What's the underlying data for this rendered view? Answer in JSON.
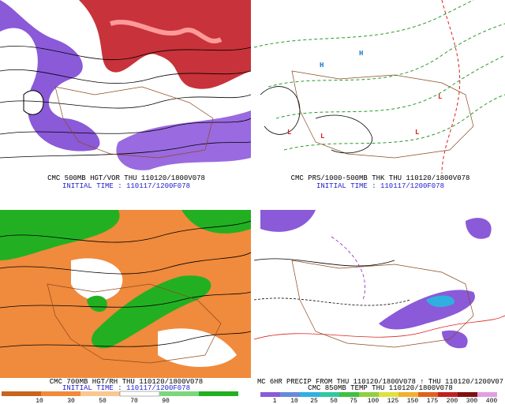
{
  "panels": [
    {
      "lines": [
        "CMC 500MB HGT/VOR THU 110120/1800V078",
        "INITIAL TIME : 110117/1200F078"
      ]
    },
    {
      "lines": [
        "CMC PRS/1000-500MB THK THU 110120/1800V078",
        "INITIAL TIME : 110117/1200F078"
      ]
    },
    {
      "lines": [
        "CMC 700MB HGT/RH THU 110120/1800V078",
        "INITIAL TIME : 110117/1200F078"
      ],
      "colorbar_labels": [
        "10",
        "30",
        "50",
        "70",
        "90"
      ]
    },
    {
      "lines": [
        "MC 6HR PRECIP FROM THU 110120/1800V078 ↑ THU 110120/1200V07",
        "CMC 850MB TEMP THU 110120/1800V078"
      ],
      "colorbar_labels": [
        "1",
        "10",
        "25",
        "50",
        "75",
        "100",
        "125",
        "150",
        "175",
        "200",
        "300",
        "400"
      ]
    }
  ]
}
